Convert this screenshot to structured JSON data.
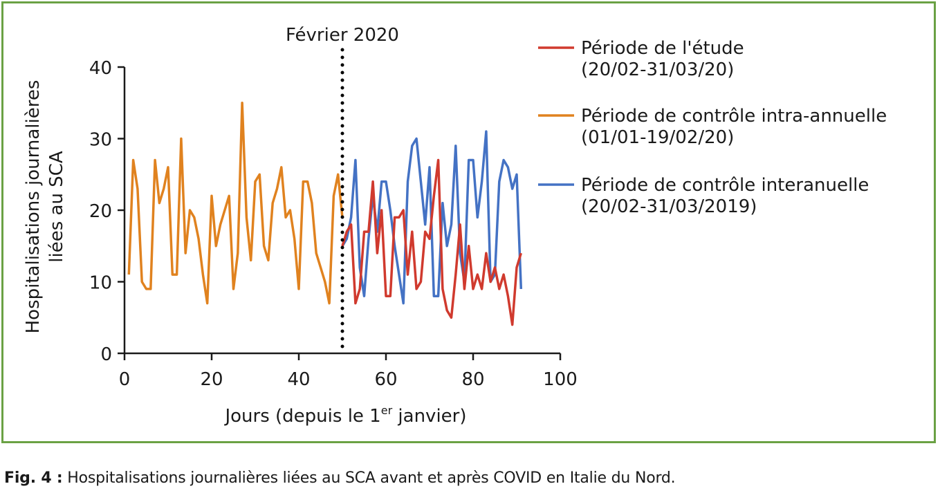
{
  "caption": {
    "label": "Fig. 4 :",
    "text": "Hospitalisations journalières liées au SCA avant et après COVID en Italie du Nord."
  },
  "chart_data": {
    "type": "line",
    "xlabel_main": "Jours (depuis le 1",
    "xlabel_sup": "er",
    "xlabel_end": " janvier)",
    "ylabel_line1": "Hospitalisations journalières",
    "ylabel_line2": "liées au SCA",
    "xlim": [
      0,
      100
    ],
    "ylim": [
      0,
      40
    ],
    "x_ticks": [
      0,
      20,
      40,
      60,
      80,
      100
    ],
    "y_ticks": [
      0,
      10,
      20,
      30,
      40
    ],
    "grid": false,
    "legend_position": "right",
    "annotation": {
      "label": "Février 2020",
      "x": 50,
      "style": "dotted-vertical-line"
    },
    "series": [
      {
        "name_line1": "Période de l'étude",
        "name_line2": "(20/02-31/03/20)",
        "color": "#d03a2e",
        "x": [
          50,
          51,
          52,
          53,
          54,
          55,
          56,
          57,
          58,
          59,
          60,
          61,
          62,
          63,
          64,
          65,
          66,
          67,
          68,
          69,
          70,
          71,
          72,
          73,
          74,
          75,
          76,
          77,
          78,
          79,
          80,
          81,
          82,
          83,
          84,
          85,
          86,
          87,
          88,
          89,
          90,
          91
        ],
        "y": [
          15,
          17,
          18,
          7,
          9,
          17,
          17,
          24,
          14,
          20,
          8,
          8,
          19,
          19,
          20,
          11,
          17,
          9,
          10,
          17,
          16,
          22,
          27,
          9,
          6,
          5,
          11,
          18,
          9,
          15,
          9,
          11,
          9,
          14,
          10,
          12,
          9,
          11,
          8,
          4,
          12,
          14
        ]
      },
      {
        "name_line1": "Période de contrôle intra-annuelle",
        "name_line2": "(01/01-19/02/20)",
        "color": "#e0821f",
        "x": [
          1,
          2,
          3,
          4,
          5,
          6,
          7,
          8,
          9,
          10,
          11,
          12,
          13,
          14,
          15,
          16,
          17,
          18,
          19,
          20,
          21,
          22,
          23,
          24,
          25,
          26,
          27,
          28,
          29,
          30,
          31,
          32,
          33,
          34,
          35,
          36,
          37,
          38,
          39,
          40,
          41,
          42,
          43,
          44,
          45,
          46,
          47,
          48,
          49,
          50
        ],
        "y": [
          11,
          27,
          23,
          10,
          9,
          9,
          27,
          21,
          23,
          26,
          11,
          11,
          30,
          14,
          20,
          19,
          16,
          11,
          7,
          22,
          15,
          18,
          20,
          22,
          9,
          14,
          35,
          19,
          13,
          24,
          25,
          15,
          13,
          21,
          23,
          26,
          19,
          20,
          16,
          9,
          24,
          24,
          21,
          14,
          12,
          10,
          7,
          22,
          25,
          19
        ]
      },
      {
        "name_line1": "Période de contrôle interanuelle",
        "name_line2": "(20/02-31/03/2019)",
        "color": "#4472c4",
        "x": [
          50,
          51,
          52,
          53,
          54,
          55,
          56,
          57,
          58,
          59,
          60,
          61,
          62,
          63,
          64,
          65,
          66,
          67,
          68,
          69,
          70,
          71,
          72,
          73,
          74,
          75,
          76,
          77,
          78,
          79,
          80,
          81,
          82,
          83,
          84,
          85,
          86,
          87,
          88,
          89,
          90,
          91
        ],
        "y": [
          15,
          16,
          19,
          27,
          12,
          8,
          16,
          22,
          17,
          24,
          24,
          20,
          15,
          11,
          7,
          24,
          29,
          30,
          24,
          18,
          26,
          8,
          8,
          21,
          15,
          18,
          29,
          14,
          10,
          27,
          27,
          19,
          24,
          31,
          10,
          11,
          24,
          27,
          26,
          23,
          25,
          9
        ]
      }
    ]
  }
}
